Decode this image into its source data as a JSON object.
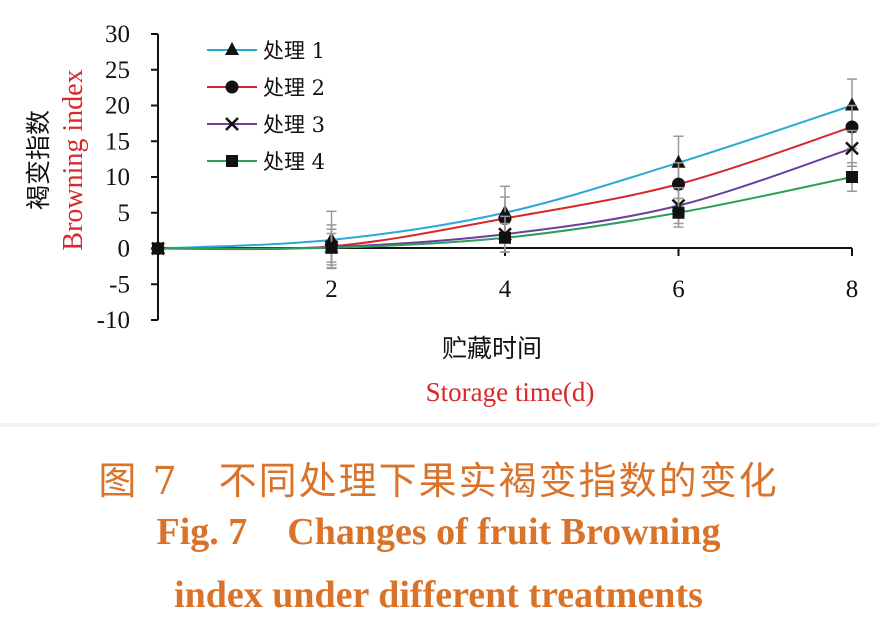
{
  "chart_data": {
    "type": "line",
    "x": [
      0,
      2,
      4,
      6,
      8
    ],
    "xticks": [
      "2",
      "4",
      "6",
      "8"
    ],
    "xlim": [
      0,
      8
    ],
    "ylim": [
      -10,
      30
    ],
    "yticks": [
      "30",
      "25",
      "20",
      "15",
      "10",
      "5",
      "0",
      "-5",
      "-10"
    ],
    "xlabel": "贮藏时间",
    "xlabel_en": "Storage time(d)",
    "ylabel": "褐变指数",
    "ylabel_en": "Browning index",
    "legend_position": "top-left",
    "grid": false,
    "series": [
      {
        "name": "处理 1",
        "values": [
          0,
          1.2,
          5,
          12,
          20
        ],
        "error": [
          0,
          4,
          3.7,
          3.7,
          3.7
        ],
        "marker": "triangle",
        "color": "#2aa8d8"
      },
      {
        "name": "处理 2",
        "values": [
          0,
          0.3,
          4.2,
          9,
          17
        ],
        "error": [
          0,
          3,
          3,
          3,
          3
        ],
        "marker": "circle",
        "color": "#d8282b"
      },
      {
        "name": "处理 3",
        "values": [
          0,
          0.2,
          2,
          6,
          14
        ],
        "error": [
          0,
          2.5,
          2.5,
          2.5,
          2.5
        ],
        "marker": "cross",
        "color": "#6b3fa0"
      },
      {
        "name": "处理 4",
        "values": [
          0,
          0.1,
          1.5,
          5,
          10
        ],
        "error": [
          0,
          2,
          2,
          2,
          2
        ],
        "marker": "square",
        "color": "#2aa05a"
      }
    ]
  },
  "caption": {
    "cn_prefix": "图 7",
    "cn_title": "不同处理下果实褐变指数的变化",
    "en_prefix": "Fig. 7",
    "en_line1": "Changes of fruit Browning",
    "en_line2": "index under different treatments"
  }
}
